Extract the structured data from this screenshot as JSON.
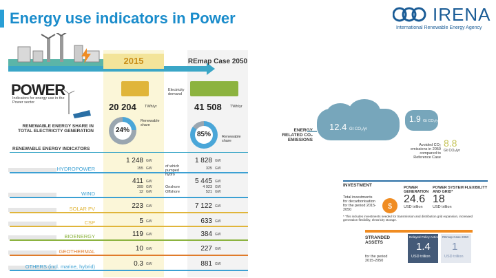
{
  "header": {
    "title": "Energy use indicators in Power",
    "logo_text": "IRENA",
    "logo_sub": "International Renewable Energy Agency"
  },
  "columns": {
    "y2015": "2015",
    "y2050": "REmap Case 2050"
  },
  "power": {
    "title": "POWER",
    "subtitle": "Indicators for energy use in the Power sector",
    "electricity_demand_label": "Electricity demand",
    "demand_2015": "20 204",
    "demand_2050": "41 508",
    "demand_unit": "TWh/yr"
  },
  "share": {
    "label": "RENEWABLE ENERGY SHARE IN TOTAL ELECTRICITY GENERATION",
    "v2015": "24%",
    "v2050": "85%",
    "legend": "Renewable share",
    "pct_2015": 24,
    "pct_2050": 85
  },
  "indicators_title": "RENEWABLE ENERGY INDICATORS",
  "rows": [
    {
      "label": "HYDROPOWER",
      "color": "#3ba0d3",
      "v2015": "1 248",
      "v2050": "1 828",
      "sub_label": "of which pumped hydro",
      "sub2015": "155",
      "sub2050": "325"
    },
    {
      "label": "WIND",
      "color": "#3ba0d3",
      "v2015": "411",
      "v2050": "5 445",
      "sub_a_label": "Onshore",
      "sub_b_label": "Offshore",
      "a2015": "399",
      "b2015": "12",
      "a2050": "4 923",
      "b2050": "521"
    },
    {
      "label": "SOLAR PV",
      "color": "#e0b53a",
      "v2015": "223",
      "v2050": "7 122"
    },
    {
      "label": "CSP",
      "color": "#e0b53a",
      "v2015": "5",
      "v2050": "633"
    },
    {
      "label": "BIOENERGY",
      "color": "#8cb33f",
      "v2015": "119",
      "v2050": "384"
    },
    {
      "label": "GEOTHERMAL",
      "color": "#e07b2a",
      "v2015": "10",
      "v2050": "227"
    },
    {
      "label": "OTHERS (incl. marine, hybrid)",
      "color": "#3ba0d3",
      "v2015": "0.3",
      "v2050": "881"
    }
  ],
  "gw": "GW",
  "emissions": {
    "label": "ENERGY RELATED CO₂ EMISSIONS",
    "value": "12.4",
    "unit": "Gt CO₂/yr",
    "small_value": "1.9",
    "small_unit": "Gt CO₂/yr",
    "avoided_text": "Avoided CO₂ emissions in 2050 compared to Reference Case",
    "avoided_value": "8.8",
    "avoided_unit": "Gt CO₂/yr"
  },
  "investment": {
    "title": "INVESTMENT",
    "desc": "Total investments for decarbonisation for the period 2015-2050",
    "gen_label": "POWER GENERATION",
    "gen_value": "24.6",
    "gen_unit": "USD trillion",
    "flex_label": "POWER SYSTEM FLEXIBILITY AND GRID*",
    "flex_value": "18",
    "flex_unit": "USD trillion",
    "note": "* This includes investments needed for transmission and distribution grid expansion, increased generation flexibility, electricity storage."
  },
  "stranded": {
    "title": "STRANDED ASSETS",
    "period": "for the period 2015-2050",
    "delayed_label": "Delayed Policy Action",
    "delayed_value": "1.4",
    "delayed_unit": "USD trillion",
    "remap_label": "REmap Case 2050",
    "remap_value": "1",
    "remap_unit": "USD trillion"
  },
  "colors": {
    "title_blue": "#1a8ccb",
    "gold": "#e0b53a",
    "green": "#8cb33f",
    "orange": "#f08c22",
    "cloud": "#77a6bb"
  }
}
